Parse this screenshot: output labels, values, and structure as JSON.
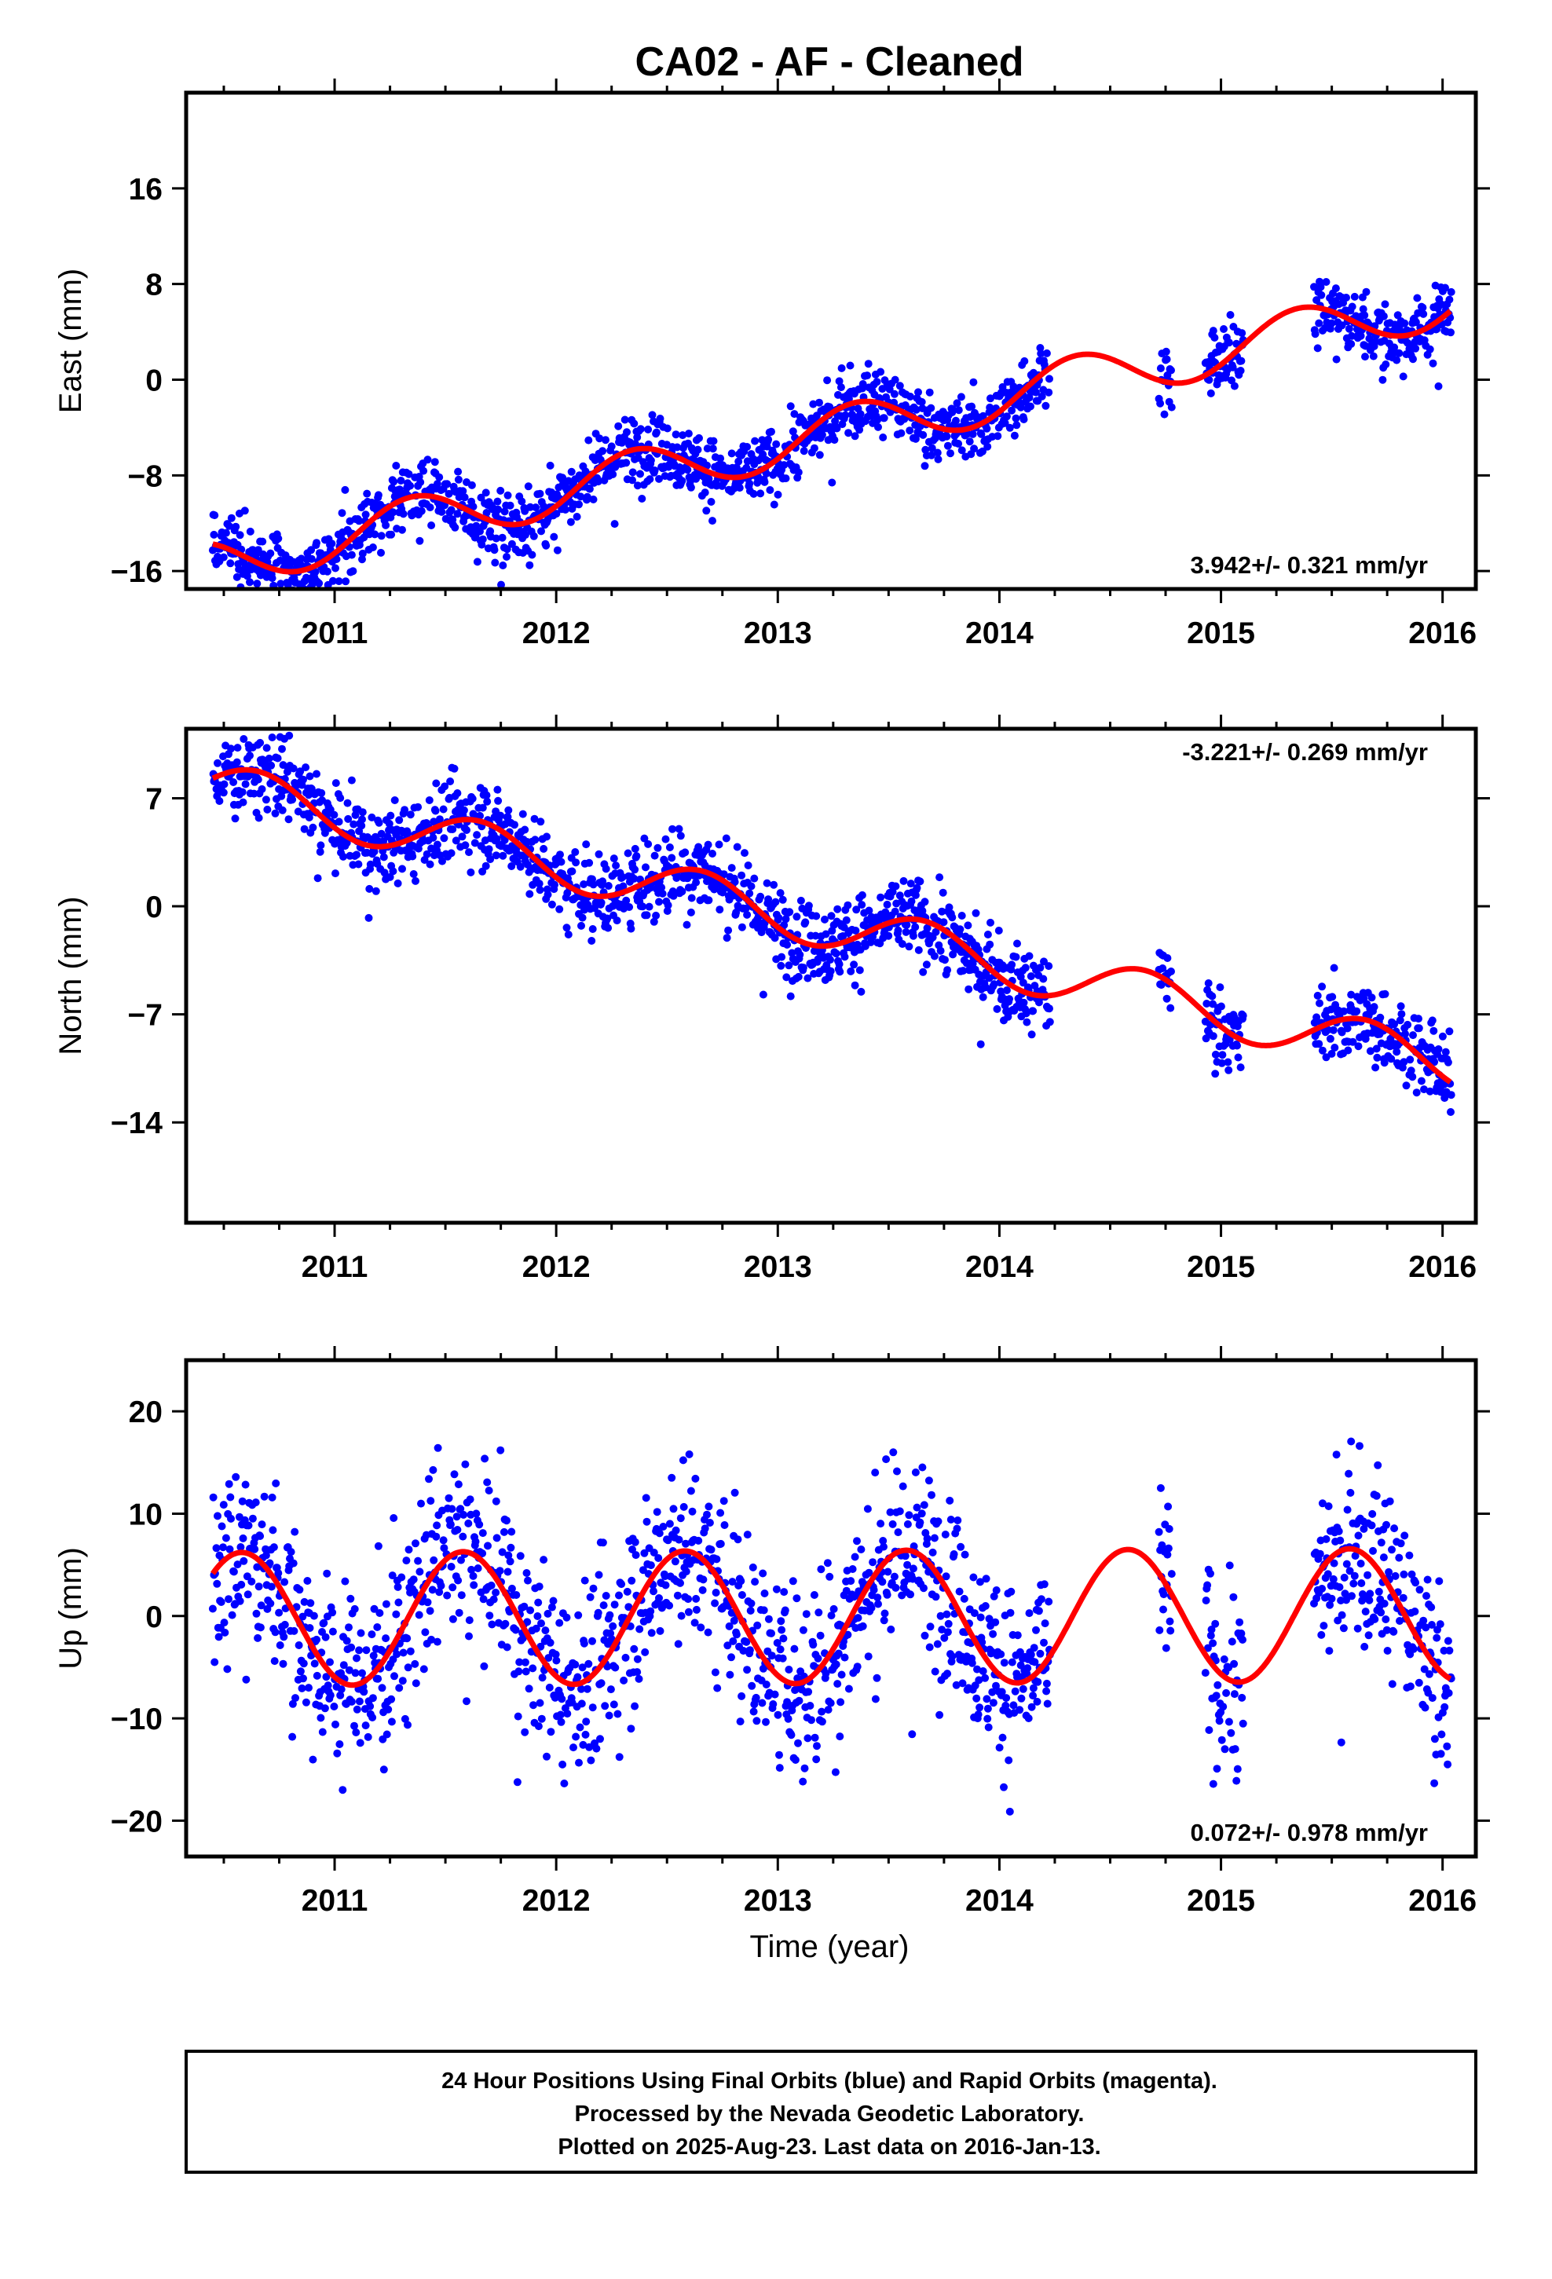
{
  "title": "CA02  - AF - Cleaned",
  "xlabel": "Time (year)",
  "footer": [
    "24 Hour Positions Using Final Orbits (blue) and Rapid Orbits (magenta).",
    "Processed by the Nevada Geodetic Laboratory.",
    "Plotted on 2025-Aug-23. Last data on 2016-Jan-13."
  ],
  "colors": {
    "data": "#0000ff",
    "fit": "#ff0000",
    "frame": "#000000"
  },
  "chart_data": [
    {
      "type": "scatter",
      "ylabel": "East (mm)",
      "rate": "3.942+/- 0.321 mm/yr",
      "rate_position": "bottom-right",
      "xlim": [
        2010.33,
        2016.15
      ],
      "ylim": [
        -17.5,
        24
      ],
      "xticks": [
        2011,
        2012,
        2013,
        2014,
        2015,
        2016
      ],
      "yticks": [
        16,
        8,
        0,
        -8,
        -16
      ],
      "fit": {
        "mean": -4.6,
        "slope": 3.942,
        "amp": 2.1,
        "phase": 0.1,
        "t0": 2013.2
      },
      "segments": [
        [
          2010.45,
          2014.23
        ],
        [
          2014.72,
          2014.78
        ],
        [
          2014.93,
          2015.1
        ],
        [
          2015.42,
          2016.04
        ]
      ],
      "noise": 1.4
    },
    {
      "type": "scatter",
      "ylabel": "North (mm)",
      "rate": "-3.221+/- 0.269 mm/yr",
      "rate_position": "top-right",
      "xlim": [
        2010.33,
        2016.15
      ],
      "ylim": [
        -20.5,
        11.5
      ],
      "xticks": [
        2011,
        2012,
        2013,
        2014,
        2015,
        2016
      ],
      "yticks": [
        7,
        0,
        -7,
        -14
      ],
      "fit": {
        "mean": 7.8,
        "slope": -3.221,
        "amp": 1.6,
        "phase": 0.4,
        "t0": 2010.45
      },
      "segments": [
        [
          2010.45,
          2014.23
        ],
        [
          2014.72,
          2014.78
        ],
        [
          2014.93,
          2015.1
        ],
        [
          2015.42,
          2016.04
        ]
      ],
      "noise": 1.3
    },
    {
      "type": "scatter",
      "ylabel": "Up (mm)",
      "rate": "0.072+/- 0.978 mm/yr",
      "rate_position": "bottom-right",
      "xlim": [
        2010.33,
        2016.15
      ],
      "ylim": [
        -23.5,
        25
      ],
      "xticks": [
        2011,
        2012,
        2013,
        2014,
        2015,
        2016
      ],
      "yticks": [
        20,
        10,
        0,
        -10,
        -20
      ],
      "fit": {
        "mean": -0.1,
        "slope": 0.072,
        "amp": 6.5,
        "phase": 0.33,
        "t0": 2013.2
      },
      "segments": [
        [
          2010.45,
          2014.23
        ],
        [
          2014.72,
          2014.78
        ],
        [
          2014.93,
          2015.1
        ],
        [
          2015.42,
          2016.04
        ]
      ],
      "noise": 4.5
    }
  ]
}
